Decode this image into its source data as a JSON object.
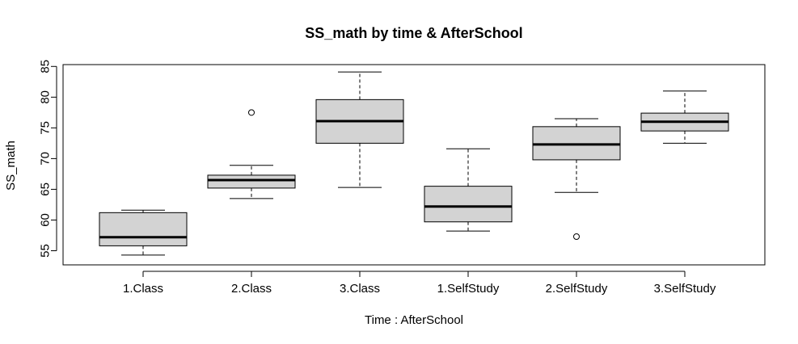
{
  "chart_data": {
    "type": "boxplot",
    "title": "SS_math by time & AfterSchool",
    "xlabel": "Time : AfterSchool",
    "ylabel": "SS_math",
    "ylim": [
      52.7,
      85.3
    ],
    "yticks": [
      55,
      60,
      65,
      70,
      75,
      80,
      85
    ],
    "box_color": "#d3d3d3",
    "categories": [
      "1.Class",
      "2.Class",
      "3.Class",
      "1.SelfStudy",
      "2.SelfStudy",
      "3.SelfStudy"
    ],
    "boxes": [
      {
        "name": "1.Class",
        "whisker_low": 54.3,
        "q1": 55.8,
        "median": 57.2,
        "q3": 61.2,
        "whisker_high": 61.6,
        "outliers": []
      },
      {
        "name": "2.Class",
        "whisker_low": 63.5,
        "q1": 65.2,
        "median": 66.5,
        "q3": 67.3,
        "whisker_high": 68.9,
        "outliers": [
          77.5
        ]
      },
      {
        "name": "3.Class",
        "whisker_low": 65.3,
        "q1": 72.5,
        "median": 76.1,
        "q3": 79.6,
        "whisker_high": 84.1,
        "outliers": []
      },
      {
        "name": "1.SelfStudy",
        "whisker_low": 58.2,
        "q1": 59.7,
        "median": 62.2,
        "q3": 65.5,
        "whisker_high": 71.6,
        "outliers": []
      },
      {
        "name": "2.SelfStudy",
        "whisker_low": 64.5,
        "q1": 69.8,
        "median": 72.3,
        "q3": 75.2,
        "whisker_high": 76.5,
        "outliers": [
          57.3
        ]
      },
      {
        "name": "3.SelfStudy",
        "whisker_low": 72.5,
        "q1": 74.5,
        "median": 76.0,
        "q3": 77.4,
        "whisker_high": 81.0,
        "outliers": []
      }
    ]
  }
}
